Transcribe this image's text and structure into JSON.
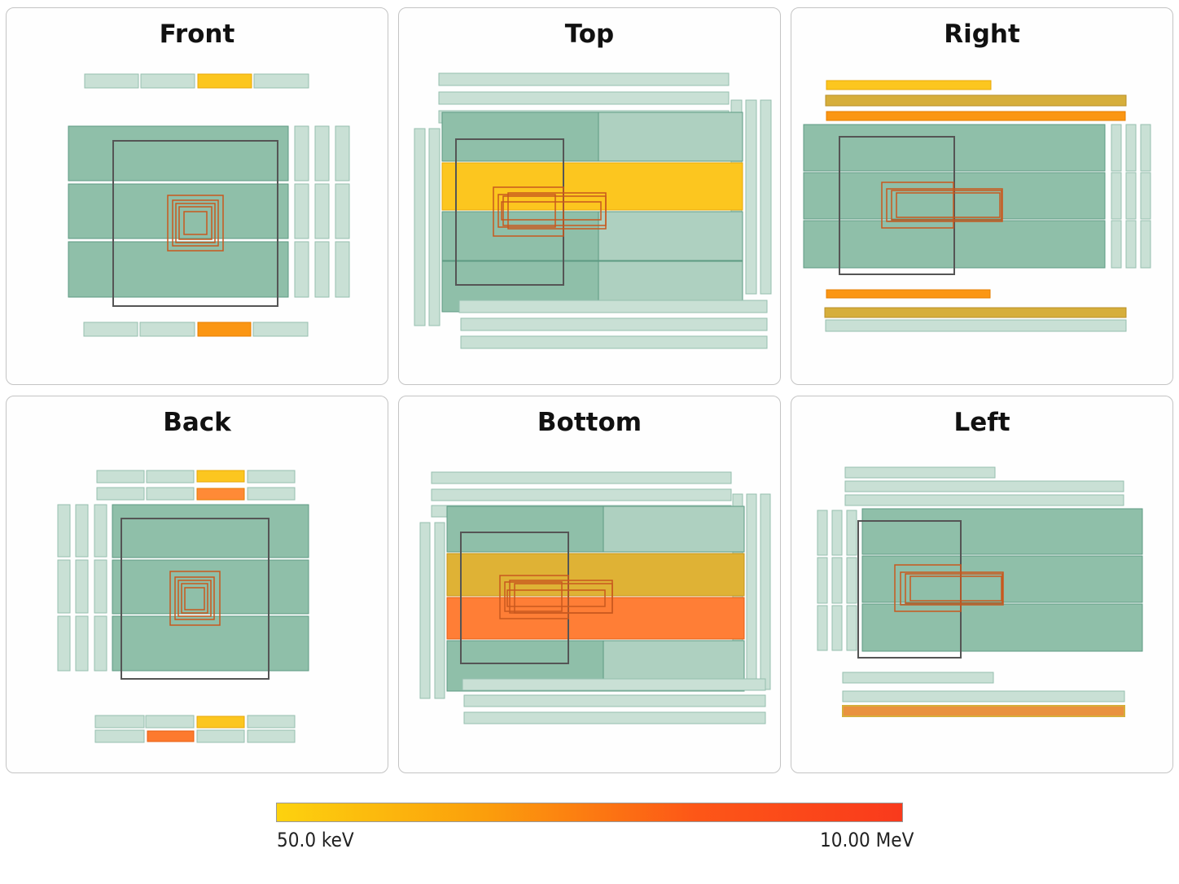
{
  "panels": [
    {
      "id": "front",
      "title": "Front"
    },
    {
      "id": "top",
      "title": "Top"
    },
    {
      "id": "right",
      "title": "Right"
    },
    {
      "id": "back",
      "title": "Back"
    },
    {
      "id": "bottom",
      "title": "Bottom"
    },
    {
      "id": "left",
      "title": "Left"
    }
  ],
  "colorbar": {
    "min_label": "50.0 keV",
    "max_label": "10.00 MeV",
    "colors": [
      "#fdd20e",
      "#fb9e0c",
      "#fd5717",
      "#f93a1c"
    ]
  },
  "palette": {
    "module_dark": "#8fbfa9",
    "module_dark_stroke": "#5c9a82",
    "module_light": "#c9e0d5",
    "module_light_stroke": "#95bfae",
    "hit_yellow": "#fcc61f",
    "hit_orange": "#fb9613",
    "hit_gold": "#d6ae3b",
    "hit_red_orange": "#ff7a30",
    "core_outline": "#c8581e",
    "frame_outline": "#555555"
  }
}
